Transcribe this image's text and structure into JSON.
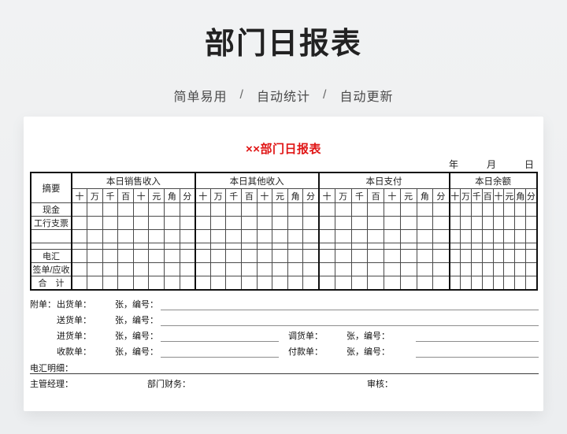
{
  "page": {
    "title": "部门日报表",
    "subtitle_items": [
      "简单易用",
      "自动统计",
      "自动更新"
    ],
    "subtitle_separator": "/"
  },
  "sheet": {
    "title": "××部门日报表",
    "date_labels": [
      "年",
      "月",
      "日"
    ],
    "table": {
      "corner": "摘要",
      "groups": [
        "本日销售收入",
        "本日其他收入",
        "本日支付",
        "本日余额"
      ],
      "units": [
        "十",
        "万",
        "千",
        "百",
        "十",
        "元",
        "角",
        "分"
      ],
      "rows": [
        "现金",
        "工行支票",
        "",
        "",
        "电汇",
        "签单/应收",
        "合　计"
      ],
      "cell_values_note": "all amount cells are empty in the template"
    },
    "attachments": {
      "prefix": "附单：",
      "rows": [
        {
          "label": "出货单：",
          "count_suffix": "张，编号："
        },
        {
          "label": "送货单：",
          "count_suffix": "张，编号："
        },
        {
          "label": "进货单：",
          "count_suffix": "张，编号：",
          "label2": "调货单：",
          "count_suffix2": "张，编号："
        },
        {
          "label": "收款单：",
          "count_suffix": "张，编号：",
          "label2": "付款单：",
          "count_suffix2": "张，编号："
        }
      ]
    },
    "wire_detail_label": "电汇明细：",
    "signatures": [
      "主管经理：",
      "部门财务：",
      "审核："
    ]
  },
  "colors": {
    "accent_red": "#e01515",
    "page_background": "#f0f1f2",
    "card_background": "#ffffff",
    "table_border": "#111111"
  }
}
